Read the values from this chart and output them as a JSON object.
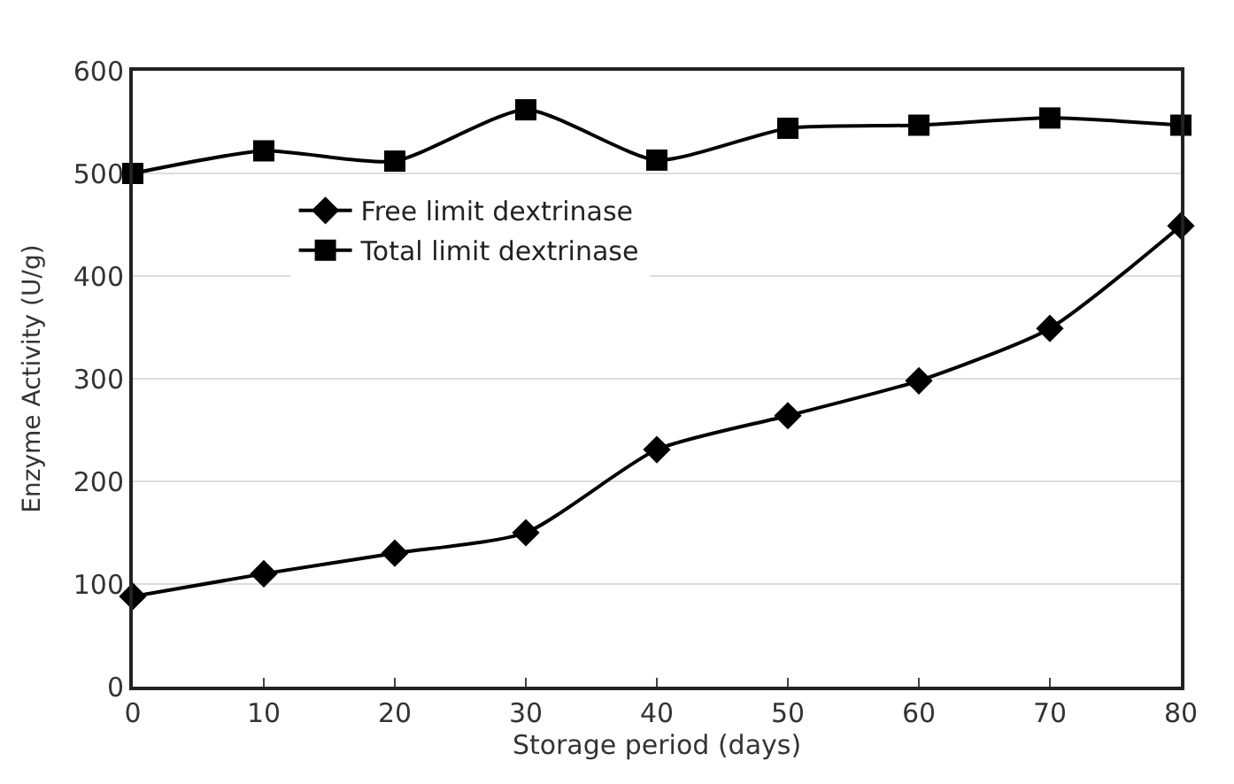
{
  "chart_data": {
    "type": "line",
    "xlabel": "Storage period (days)",
    "ylabel": "Enzyme Activity (U/g)",
    "x": [
      0,
      10,
      20,
      30,
      40,
      50,
      60,
      70,
      80
    ],
    "series": [
      {
        "name": "Free limit dextrinase",
        "color": "#000000",
        "marker": "diamond",
        "values": [
          88,
          110,
          130,
          150,
          231,
          264,
          298,
          349,
          449
        ]
      },
      {
        "name": "Total limit dextrinase",
        "color": "#000000",
        "marker": "square",
        "values": [
          500,
          522,
          512,
          562,
          513,
          544,
          547,
          554,
          547
        ]
      }
    ],
    "xlim": [
      0,
      80
    ],
    "xticks": [
      0,
      10,
      20,
      30,
      40,
      50,
      60,
      70,
      80
    ],
    "ylim": [
      0,
      600
    ],
    "yticks": [
      0,
      100,
      200,
      300,
      400,
      500,
      600
    ],
    "grid": "y",
    "legend": "top left",
    "line_style": "solid"
  }
}
